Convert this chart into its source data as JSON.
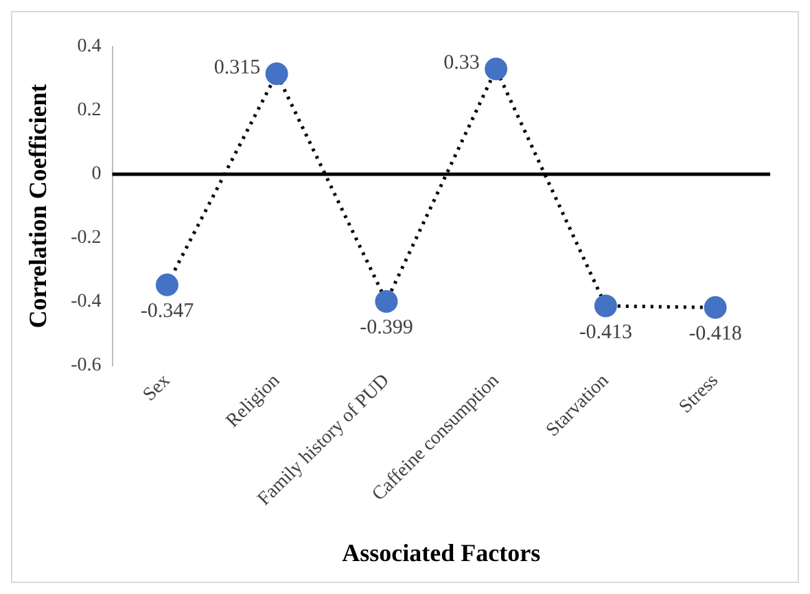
{
  "chart_data": {
    "type": "line",
    "xlabel": "Associated Factors",
    "ylabel": "Correlation Coefficient",
    "categories": [
      "Sex",
      "Religion",
      "Family history of PUD",
      "Caffeine consumption",
      "Starvation",
      "Stress"
    ],
    "series": [
      {
        "color": "#4472c4",
        "values": [
          -0.347,
          0.315,
          -0.399,
          0.33,
          -0.413,
          -0.418
        ]
      }
    ],
    "ylim": [
      -0.6,
      0.4
    ],
    "yticks": [
      -0.6,
      -0.4,
      -0.2,
      0,
      0.2,
      0.4
    ],
    "ref_lines": [
      {
        "axis": "y",
        "value": 0,
        "color": "#000000"
      }
    ],
    "data_labels": true,
    "marker": "circle",
    "line_style": "dotted",
    "grid": false,
    "legend": false
  }
}
